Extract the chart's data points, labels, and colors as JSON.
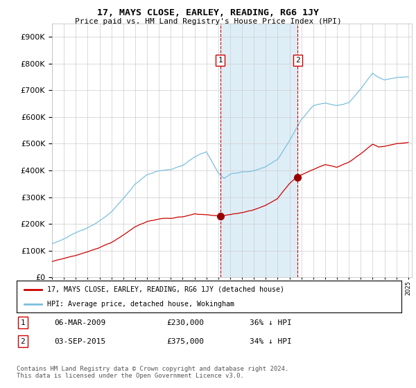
{
  "title": "17, MAYS CLOSE, EARLEY, READING, RG6 1JY",
  "subtitle": "Price paid vs. HM Land Registry's House Price Index (HPI)",
  "hpi_color": "#7bbfdd",
  "price_color": "#cc0000",
  "vline_color": "#cc0000",
  "span_color": "#deeef7",
  "background_color": "#ffffff",
  "grid_color": "#cccccc",
  "ylim": [
    0,
    950000
  ],
  "yticks": [
    0,
    100000,
    200000,
    300000,
    400000,
    500000,
    600000,
    700000,
    800000,
    900000
  ],
  "legend_label_red": "17, MAYS CLOSE, EARLEY, READING, RG6 1JY (detached house)",
  "legend_label_blue": "HPI: Average price, detached house, Wokingham",
  "transaction1_label": "1",
  "transaction1_date": "06-MAR-2009",
  "transaction1_price": "£230,000",
  "transaction1_hpi": "36% ↓ HPI",
  "transaction1_year": 2009.17,
  "transaction1_value": 230000,
  "transaction2_label": "2",
  "transaction2_date": "03-SEP-2015",
  "transaction2_price": "£375,000",
  "transaction2_hpi": "34% ↓ HPI",
  "transaction2_year": 2015.67,
  "transaction2_value": 375000,
  "footnote": "Contains HM Land Registry data © Crown copyright and database right 2024.\nThis data is licensed under the Open Government Licence v3.0."
}
